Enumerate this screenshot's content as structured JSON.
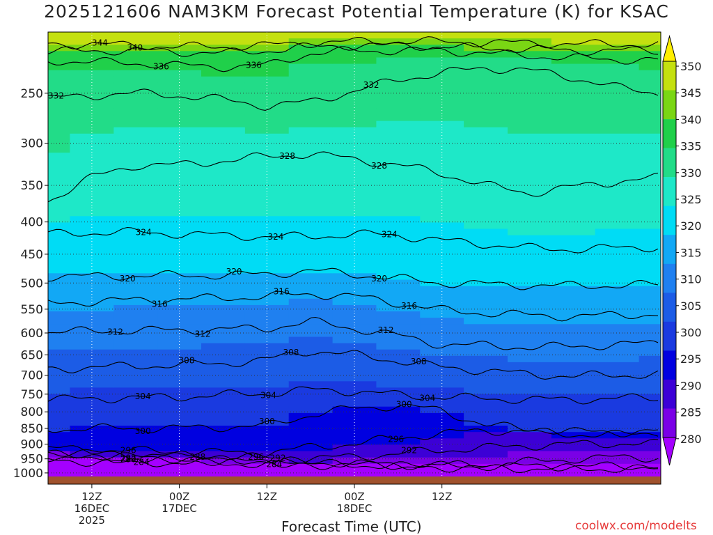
{
  "title": "2025121606 NAM3KM Forecast Potential Temperature (K) for KSAC",
  "credit": "coolwx.com/modelts",
  "chart_data": {
    "type": "contour",
    "title": "2025121606 NAM3KM Forecast Potential Temperature (K) for KSAC",
    "xlabel": "Forecast Time (UTC)",
    "ylabel": "",
    "yaxis": {
      "ticks": [
        250,
        300,
        350,
        400,
        450,
        500,
        550,
        600,
        650,
        700,
        750,
        800,
        850,
        900,
        950,
        1000
      ],
      "range": [
        200,
        1013
      ],
      "scale": "log-pressure",
      "inverted": true,
      "gridlines": "dotted"
    },
    "xaxis": {
      "range_hours": [
        0,
        84
      ],
      "ticks": [
        {
          "hour": 6,
          "lines": [
            "12Z",
            "16DEC",
            "2025"
          ]
        },
        {
          "hour": 18,
          "lines": [
            "00Z",
            "17DEC"
          ]
        },
        {
          "hour": 30,
          "lines": [
            "12Z"
          ]
        },
        {
          "hour": 42,
          "lines": [
            "00Z",
            "18DEC"
          ]
        },
        {
          "hour": 54,
          "lines": [
            "12Z"
          ]
        }
      ],
      "gridlines": "dotted"
    },
    "colorbar": {
      "levels": [
        280,
        285,
        290,
        295,
        300,
        305,
        310,
        315,
        320,
        325,
        330,
        335,
        340,
        345,
        350
      ],
      "labels": [
        "350",
        "345",
        "340",
        "335",
        "330",
        "325",
        "320",
        "315",
        "310",
        "305",
        "300",
        "295",
        "290",
        "285",
        "280"
      ],
      "colors": [
        "#a400ff",
        "#7a00e6",
        "#3c00d6",
        "#0000e0",
        "#1a3ae0",
        "#1c5ce6",
        "#1f80f0",
        "#12a8f5",
        "#00dcf5",
        "#1ee8c8",
        "#22dc88",
        "#20d04a",
        "#7ad614",
        "#c4e010",
        "#ffee00"
      ],
      "extend": "both"
    },
    "contours": [
      {
        "level": 280,
        "p": [
          955,
          960,
          962,
          964,
          966,
          968,
          970,
          972,
          974,
          975,
          976,
          976,
          976,
          976,
          976
        ],
        "labels": [
          {
            "hour": 11,
            "text": "280"
          }
        ]
      },
      {
        "level": 284,
        "p": [
          944,
          950,
          953,
          956,
          958,
          962,
          966,
          970,
          975,
          980,
          982,
          984,
          984,
          985,
          985
        ],
        "labels": [
          {
            "hour": 12.8,
            "text": "284"
          },
          {
            "hour": 31,
            "text": "284"
          }
        ]
      },
      {
        "level": 288,
        "p": [
          935,
          940,
          944,
          948,
          952,
          957,
          962,
          966,
          970,
          973,
          968,
          960,
          950,
          945,
          945
        ],
        "labels": [
          {
            "hour": 20.5,
            "text": "288"
          }
        ]
      },
      {
        "level": 292,
        "p": [
          925,
          930,
          935,
          938,
          942,
          946,
          950,
          942,
          932,
          920,
          912,
          905,
          900,
          898,
          900
        ],
        "labels": [
          {
            "hour": 11,
            "text": "292"
          },
          {
            "hour": 31.5,
            "text": "292"
          },
          {
            "hour": 49.5,
            "text": "292"
          }
        ]
      },
      {
        "level": 296,
        "p": [
          915,
          918,
          922,
          925,
          928,
          930,
          910,
          898,
          880,
          866,
          856,
          860,
          868,
          870,
          862
        ],
        "labels": [
          {
            "hour": 11,
            "text": "296"
          },
          {
            "hour": 28.5,
            "text": "296"
          },
          {
            "hour": 47.7,
            "text": "296"
          }
        ]
      },
      {
        "level": 300,
        "p": [
          852,
          850,
          850,
          849,
          846,
          842,
          808,
          790,
          782,
          796,
          840,
          852,
          860,
          862,
          858
        ],
        "labels": [
          {
            "hour": 13,
            "text": "300"
          },
          {
            "hour": 30,
            "text": "300"
          },
          {
            "hour": 48.8,
            "text": "300"
          }
        ]
      },
      {
        "level": 304,
        "p": [
          765,
          762,
          760,
          758,
          752,
          748,
          738,
          742,
          752,
          758,
          762,
          765,
          765,
          762,
          760
        ],
        "labels": [
          {
            "hour": 13,
            "text": "304"
          },
          {
            "hour": 30.2,
            "text": "304"
          },
          {
            "hour": 52,
            "text": "304"
          }
        ]
      },
      {
        "level": 308,
        "p": [
          685,
          680,
          677,
          674,
          670,
          662,
          640,
          650,
          664,
          680,
          688,
          698,
          702,
          700,
          697
        ],
        "labels": [
          {
            "hour": 19,
            "text": "308"
          },
          {
            "hour": 33.3,
            "text": "308"
          },
          {
            "hour": 50.8,
            "text": "308"
          }
        ]
      },
      {
        "level": 312,
        "p": [
          598,
          596,
          594,
          594,
          592,
          590,
          575,
          590,
          606,
          626,
          628,
          632,
          630,
          626,
          622
        ],
        "labels": [
          {
            "hour": 9.2,
            "text": "312"
          },
          {
            "hour": 21.2,
            "text": "312"
          },
          {
            "hour": 46.3,
            "text": "312"
          }
        ]
      },
      {
        "level": 316,
        "p": [
          538,
          535,
          532,
          530,
          528,
          525,
          520,
          525,
          538,
          552,
          558,
          562,
          565,
          562,
          560
        ],
        "labels": [
          {
            "hour": 15.3,
            "text": "316"
          },
          {
            "hour": 32,
            "text": "316"
          },
          {
            "hour": 49.5,
            "text": "316"
          }
        ]
      },
      {
        "level": 320,
        "p": [
          488,
          488,
          487,
          486,
          486,
          484,
          478,
          484,
          492,
          500,
          502,
          504,
          505,
          504,
          503
        ],
        "labels": [
          {
            "hour": 10.9,
            "text": "320"
          },
          {
            "hour": 25.5,
            "text": "320"
          },
          {
            "hour": 45.4,
            "text": "320"
          }
        ]
      },
      {
        "level": 324,
        "p": [
          418,
          416,
          415,
          418,
          420,
          422,
          422,
          418,
          420,
          428,
          434,
          440,
          442,
          440,
          438
        ],
        "labels": [
          {
            "hour": 13.1,
            "text": "324"
          },
          {
            "hour": 31.2,
            "text": "324"
          },
          {
            "hour": 46.8,
            "text": "324"
          }
        ]
      },
      {
        "level": 328,
        "p": [
          370,
          340,
          325,
          325,
          320,
          315,
          312,
          318,
          325,
          335,
          350,
          360,
          352,
          345,
          340
        ],
        "labels": [
          {
            "hour": 32.8,
            "text": "328"
          },
          {
            "hour": 45.4,
            "text": "328"
          }
        ]
      },
      {
        "level": 332,
        "p": [
          255,
          252,
          250,
          252,
          256,
          262,
          258,
          248,
          238,
          232,
          228,
          230,
          236,
          245,
          250
        ],
        "labels": [
          {
            "hour": 1.1,
            "text": "332"
          },
          {
            "hour": 44.3,
            "text": "332"
          }
        ]
      },
      {
        "level": 336,
        "p": [
          222,
          223,
          224,
          226,
          227,
          226,
          216,
          214,
          214,
          214,
          216,
          218,
          220,
          221,
          222
        ],
        "labels": [
          {
            "hour": 15.5,
            "text": "336"
          },
          {
            "hour": 28.2,
            "text": "336"
          }
        ]
      },
      {
        "level": 340,
        "p": [
          215,
          214,
          214,
          215,
          216,
          214,
          211,
          210,
          210,
          211,
          212,
          213,
          214,
          214,
          214
        ],
        "labels": [
          {
            "hour": 11.9,
            "text": "340"
          }
        ]
      },
      {
        "level": 344,
        "p": [
          209,
          209,
          210,
          211,
          211,
          210,
          208,
          207,
          207,
          207,
          208,
          208,
          209,
          209,
          209
        ],
        "labels": [
          {
            "hour": 7.1,
            "text": "344"
          }
        ]
      }
    ]
  }
}
